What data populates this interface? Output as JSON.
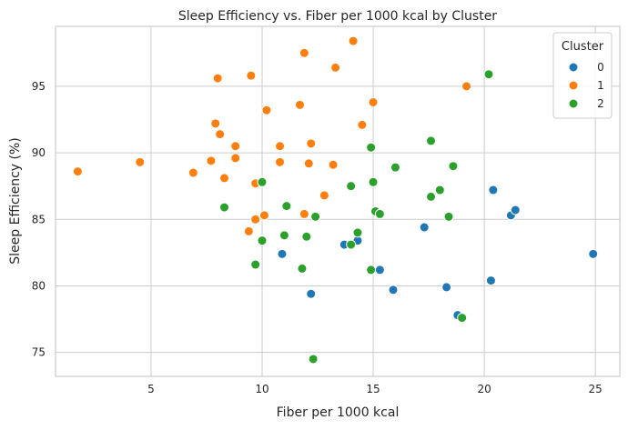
{
  "chart_data": {
    "type": "scatter",
    "title": "Sleep Efficiency vs. Fiber per 1000 kcal by Cluster",
    "xlabel": "Fiber per 1000 kcal",
    "ylabel": "Sleep Efficiency (%)",
    "xlim": [
      0.7,
      26.1
    ],
    "ylim": [
      73.2,
      99.5
    ],
    "xticks": [
      5,
      10,
      15,
      20,
      25
    ],
    "yticks": [
      75,
      80,
      85,
      90,
      95
    ],
    "grid": true,
    "legend": {
      "title": "Cluster",
      "position": "top-right"
    },
    "series": [
      {
        "name": "0",
        "color": "#1f77b4",
        "points": [
          [
            10.9,
            82.4
          ],
          [
            12.2,
            79.4
          ],
          [
            13.7,
            83.1
          ],
          [
            14.3,
            83.4
          ],
          [
            15.3,
            81.2
          ],
          [
            15.9,
            79.7
          ],
          [
            17.3,
            84.4
          ],
          [
            18.3,
            79.9
          ],
          [
            18.8,
            77.8
          ],
          [
            20.3,
            80.4
          ],
          [
            20.4,
            87.2
          ],
          [
            21.2,
            85.3
          ],
          [
            21.4,
            85.7
          ],
          [
            24.9,
            82.4
          ]
        ]
      },
      {
        "name": "1",
        "color": "#ff7f0e",
        "points": [
          [
            1.7,
            88.6
          ],
          [
            4.5,
            89.3
          ],
          [
            6.9,
            88.5
          ],
          [
            7.7,
            89.4
          ],
          [
            7.9,
            92.2
          ],
          [
            8.0,
            95.6
          ],
          [
            8.1,
            91.4
          ],
          [
            8.3,
            88.1
          ],
          [
            8.8,
            90.5
          ],
          [
            8.8,
            89.6
          ],
          [
            9.4,
            84.1
          ],
          [
            9.5,
            95.8
          ],
          [
            9.7,
            87.7
          ],
          [
            9.7,
            85.0
          ],
          [
            10.1,
            85.3
          ],
          [
            10.2,
            93.2
          ],
          [
            10.8,
            90.5
          ],
          [
            10.8,
            89.3
          ],
          [
            11.7,
            93.6
          ],
          [
            11.9,
            97.5
          ],
          [
            11.9,
            85.4
          ],
          [
            12.1,
            89.2
          ],
          [
            12.2,
            90.7
          ],
          [
            12.8,
            86.8
          ],
          [
            13.2,
            89.1
          ],
          [
            13.3,
            96.4
          ],
          [
            14.1,
            98.4
          ],
          [
            14.5,
            92.1
          ],
          [
            15.0,
            93.8
          ],
          [
            19.2,
            95.0
          ]
        ]
      },
      {
        "name": "2",
        "color": "#2ca02c",
        "points": [
          [
            8.3,
            85.9
          ],
          [
            9.7,
            81.6
          ],
          [
            10.0,
            87.8
          ],
          [
            10.0,
            83.4
          ],
          [
            11.0,
            83.8
          ],
          [
            11.1,
            86.0
          ],
          [
            11.8,
            81.3
          ],
          [
            12.0,
            83.7
          ],
          [
            12.4,
            85.2
          ],
          [
            12.3,
            74.5
          ],
          [
            14.0,
            87.5
          ],
          [
            14.0,
            83.1
          ],
          [
            14.3,
            84.0
          ],
          [
            14.9,
            90.4
          ],
          [
            14.9,
            81.2
          ],
          [
            15.0,
            87.8
          ],
          [
            15.1,
            85.6
          ],
          [
            15.3,
            85.4
          ],
          [
            16.0,
            88.9
          ],
          [
            17.6,
            90.9
          ],
          [
            17.6,
            86.7
          ],
          [
            18.0,
            87.2
          ],
          [
            18.4,
            85.2
          ],
          [
            18.6,
            89.0
          ],
          [
            19.0,
            77.6
          ],
          [
            20.2,
            95.9
          ]
        ]
      }
    ]
  }
}
